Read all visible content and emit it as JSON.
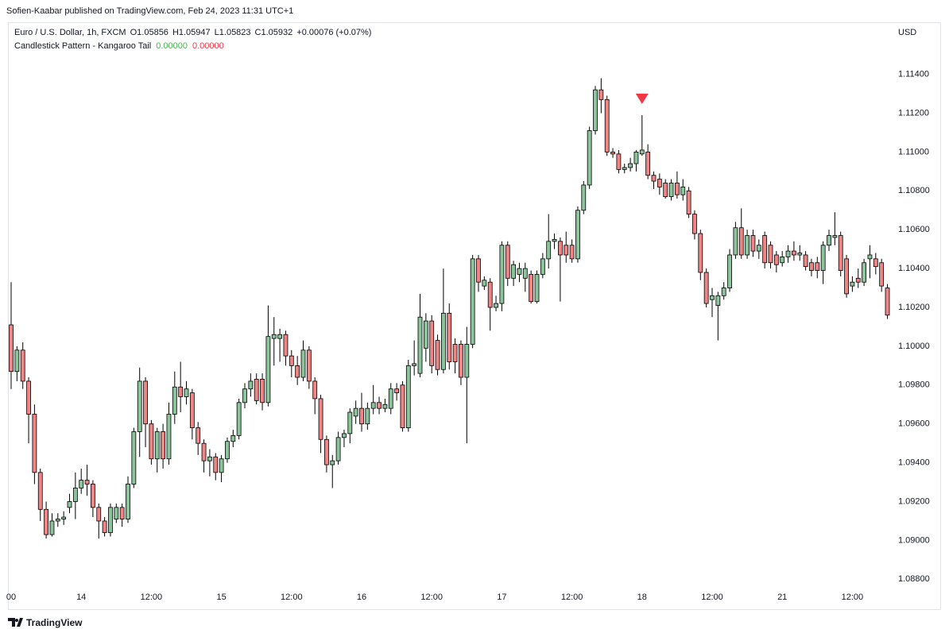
{
  "header": {
    "publisher": "Sofien-Kaabar published on TradingView.com, Feb 24, 2023 11:31 UTC+1"
  },
  "footer": {
    "brand": "TradingView"
  },
  "chart_data": {
    "type": "candlestick",
    "symbol": "Euro / U.S. Dollar, 1h, FXCM",
    "ohlc_legend": [
      "O1.05856",
      "H1.05947",
      "L1.05823",
      "C1.05932",
      "+0.00076 (+0.07%)"
    ],
    "indicator": {
      "name": "Candlestick Pattern - Kangaroo Tail",
      "values": [
        "0.00000",
        "0.00000"
      ],
      "colors": [
        "#4caf50",
        "#f23645"
      ]
    },
    "currency": "USD",
    "up_color": "#8cc59c",
    "down_color": "#ef8585",
    "signal_color": "#f23645",
    "bearish_signal_at": 108,
    "categories": [
      "00",
      null,
      null,
      null,
      null,
      null,
      null,
      null,
      null,
      null,
      null,
      null,
      "14",
      null,
      null,
      null,
      null,
      null,
      null,
      null,
      null,
      null,
      null,
      null,
      "12:00",
      null,
      null,
      null,
      null,
      null,
      null,
      null,
      null,
      null,
      null,
      null,
      "15",
      null,
      null,
      null,
      null,
      null,
      null,
      null,
      null,
      null,
      null,
      null,
      "12:00",
      null,
      null,
      null,
      null,
      null,
      null,
      null,
      null,
      null,
      null,
      null,
      "16",
      null,
      null,
      null,
      null,
      null,
      null,
      null,
      null,
      null,
      null,
      null,
      "12:00",
      null,
      null,
      null,
      null,
      null,
      null,
      null,
      null,
      null,
      null,
      null,
      "17",
      null,
      null,
      null,
      null,
      null,
      null,
      null,
      null,
      null,
      null,
      null,
      "12:00",
      null,
      null,
      null,
      null,
      null,
      null,
      null,
      null,
      null,
      null,
      null,
      "18",
      null,
      null,
      null,
      null,
      null,
      null,
      null,
      null,
      null,
      null,
      null,
      "12:00",
      null,
      null,
      null,
      null,
      null,
      null,
      null,
      null,
      null,
      null,
      null,
      "21",
      null,
      null,
      null,
      null,
      null,
      null,
      null,
      null,
      null,
      null,
      null,
      "12:00",
      null,
      null,
      null,
      null,
      null,
      null
    ],
    "open": [
      1.1011,
      1.0987,
      1.0998,
      1.0982,
      1.0965,
      1.0935,
      1.0916,
      1.0903,
      1.091,
      1.0911,
      1.0917,
      1.092,
      1.0927,
      1.0931,
      1.0929,
      1.0917,
      1.091,
      1.0904,
      1.0911,
      1.0917,
      1.0911,
      1.0929,
      1.0956,
      1.0982,
      1.096,
      1.0942,
      1.0956,
      1.0942,
      1.0965,
      1.0979,
      1.0974,
      1.0976,
      1.0958,
      1.095,
      1.0941,
      1.0943,
      1.0935,
      1.0942,
      1.0951,
      1.0954,
      1.0971,
      1.0978,
      1.0983,
      1.0983,
      1.0971,
      1.1004,
      1.1004,
      1.1006,
      1.0995,
      1.099,
      1.0984,
      1.0998,
      1.0982,
      1.0973,
      1.0952,
      1.0939,
      1.0941,
      1.0953,
      1.0955,
      1.0964,
      1.0968,
      1.096,
      1.0968,
      1.0971,
      1.0968,
      1.0968,
      1.0978,
      1.098,
      1.0958,
      1.099,
      1.0986,
      1.0999,
      1.1013,
      1.1003,
      1.0988,
      1.1017,
      1.1001,
      1.1001,
      1.0984,
      1.1001,
      1.1045,
      1.1031,
      1.1033,
      1.102,
      1.1022,
      1.1052,
      1.1035,
      1.1037,
      1.1035,
      1.1037,
      1.1023,
      1.1037,
      1.1045,
      1.1054,
      1.1054,
      1.1052,
      1.1052,
      1.1045,
      1.107,
      1.1083,
      1.1111,
      1.1132,
      1.1127,
      1.11,
      1.1099,
      1.1091,
      1.1092,
      1.1094,
      1.1099,
      1.11,
      1.1088,
      1.1086,
      1.1084,
      1.1077,
      1.1084,
      1.1078,
      1.108,
      1.1068,
      1.1058,
      1.1038,
      1.1024,
      1.1021,
      1.1026,
      1.103,
      1.1047,
      1.1061,
      1.1047,
      1.1057,
      1.1049,
      1.1057,
      1.1052,
      1.1047,
      1.1043,
      1.1046,
      1.1049,
      1.1047,
      1.1047,
      1.1043,
      1.1043,
      1.1039,
      1.1052,
      1.1056,
      1.1057,
      1.1045,
      1.1031,
      1.1035,
      1.1033,
      1.1045,
      1.1045,
      1.1043,
      1.103
    ],
    "high": [
      1.1033,
      1.1,
      1.1002,
      1.0984,
      1.097,
      1.0937,
      1.092,
      1.0914,
      1.0914,
      1.0915,
      1.0924,
      1.0935,
      1.0937,
      1.0939,
      1.0931,
      1.0919,
      1.0912,
      1.0919,
      1.0919,
      1.0919,
      1.0933,
      1.0958,
      1.0989,
      1.0984,
      1.0962,
      1.0958,
      1.096,
      1.0971,
      1.0987,
      1.0992,
      1.0982,
      1.0978,
      1.0961,
      1.0952,
      1.0947,
      1.0945,
      1.0944,
      1.0953,
      1.0957,
      1.0973,
      1.0981,
      1.0986,
      1.0986,
      1.0986,
      1.1021,
      1.1015,
      1.1009,
      1.1008,
      1.0998,
      1.0995,
      1.1003,
      1.1,
      1.0984,
      1.0975,
      1.0954,
      1.0944,
      1.0956,
      1.0957,
      1.0968,
      1.0972,
      1.0976,
      1.0971,
      1.098,
      1.0974,
      1.0973,
      1.0981,
      1.0981,
      1.0982,
      1.0993,
      1.1003,
      1.1027,
      1.1017,
      1.1016,
      1.1006,
      1.104,
      1.1022,
      1.1004,
      1.1003,
      1.101,
      1.1047,
      1.1047,
      1.1036,
      1.1035,
      1.1026,
      1.1054,
      1.1054,
      1.1044,
      1.1043,
      1.1043,
      1.1039,
      1.1039,
      1.1048,
      1.1068,
      1.1058,
      1.1056,
      1.1059,
      1.1055,
      1.1072,
      1.1085,
      1.1113,
      1.1134,
      1.1138,
      1.1129,
      1.1102,
      1.1101,
      1.1094,
      1.1097,
      1.1101,
      1.1119,
      1.1104,
      1.109,
      1.1089,
      1.1086,
      1.1086,
      1.109,
      1.1086,
      1.1082,
      1.107,
      1.106,
      1.104,
      1.103,
      1.1028,
      1.1033,
      1.105,
      1.1064,
      1.1071,
      1.106,
      1.106,
      1.1055,
      1.1059,
      1.1054,
      1.1049,
      1.1049,
      1.1052,
      1.1054,
      1.1052,
      1.1049,
      1.1045,
      1.1046,
      1.1054,
      1.106,
      1.1069,
      1.1059,
      1.1047,
      1.1036,
      1.104,
      1.1045,
      1.1052,
      1.1048,
      1.1045,
      1.1032
    ],
    "low": [
      1.0978,
      1.0982,
      1.0978,
      1.095,
      1.0929,
      1.091,
      1.0901,
      1.0902,
      1.0907,
      1.0908,
      1.0914,
      1.0911,
      1.0924,
      1.0923,
      1.0912,
      1.0901,
      1.0902,
      1.0902,
      1.0909,
      1.0907,
      1.0909,
      1.0927,
      1.0943,
      1.0948,
      1.0939,
      1.0935,
      1.0937,
      1.0939,
      1.096,
      1.0966,
      1.097,
      1.0952,
      1.0944,
      1.0935,
      1.0933,
      1.0931,
      1.093,
      1.094,
      1.0948,
      1.0952,
      1.0968,
      1.0974,
      1.097,
      1.0967,
      1.0969,
      1.099,
      1.0992,
      1.099,
      1.0984,
      1.098,
      1.0982,
      1.0978,
      1.0965,
      1.0945,
      1.0935,
      1.0927,
      1.0939,
      1.0948,
      1.095,
      1.096,
      1.0956,
      1.0957,
      1.0965,
      1.0965,
      1.0966,
      1.0965,
      1.0972,
      1.0956,
      1.0956,
      1.0985,
      1.0984,
      1.0992,
      1.0986,
      1.0985,
      1.0986,
      1.0988,
      1.0986,
      1.098,
      1.095,
      1.0999,
      1.1028,
      1.1029,
      1.1008,
      1.1018,
      1.1018,
      1.1031,
      1.1031,
      1.1033,
      1.1028,
      1.1022,
      1.1022,
      1.1035,
      1.104,
      1.105,
      1.1023,
      1.1043,
      1.1043,
      1.1043,
      1.1068,
      1.1081,
      1.1109,
      1.112,
      1.1098,
      1.1097,
      1.1089,
      1.1089,
      1.109,
      1.109,
      1.1098,
      1.1086,
      1.1081,
      1.1078,
      1.1076,
      1.1075,
      1.1076,
      1.1075,
      1.1066,
      1.1055,
      1.1034,
      1.102,
      1.1015,
      1.1003,
      1.1024,
      1.1028,
      1.1045,
      1.1045,
      1.1045,
      1.1046,
      1.1045,
      1.104,
      1.104,
      1.1038,
      1.1041,
      1.1043,
      1.1044,
      1.1044,
      1.1039,
      1.1036,
      1.1035,
      1.1032,
      1.1049,
      1.1052,
      1.1036,
      1.1025,
      1.1028,
      1.103,
      1.1031,
      1.1035,
      1.1037,
      1.1028,
      1.1014
    ],
    "close": [
      1.0987,
      1.0998,
      1.0982,
      1.0965,
      1.0935,
      1.0916,
      1.0903,
      1.091,
      1.0911,
      1.0912,
      1.092,
      1.0927,
      1.0931,
      1.0929,
      1.0917,
      1.091,
      1.0904,
      1.0917,
      1.0917,
      1.0911,
      1.0929,
      1.0956,
      1.0982,
      1.096,
      1.0942,
      1.0956,
      1.0942,
      1.0965,
      1.0979,
      1.0974,
      1.0978,
      1.0958,
      1.095,
      1.0941,
      1.0943,
      1.0935,
      1.0942,
      1.0951,
      1.0954,
      1.0971,
      1.0978,
      1.0982,
      1.0972,
      1.0971,
      1.1005,
      1.1006,
      1.1006,
      1.0995,
      1.099,
      1.0984,
      1.0998,
      1.0982,
      1.0973,
      1.0952,
      1.0939,
      1.0941,
      1.0953,
      1.0955,
      1.0966,
      1.0968,
      1.096,
      1.0968,
      1.0971,
      1.0968,
      1.097,
      1.0978,
      1.0976,
      1.0958,
      1.099,
      1.0991,
      1.1015,
      1.1013,
      1.099,
      1.0988,
      1.1017,
      1.0992,
      1.0992,
      1.0984,
      1.1001,
      1.1045,
      1.1033,
      1.1034,
      1.102,
      1.1022,
      1.1052,
      1.1035,
      1.1042,
      1.104,
      1.104,
      1.1023,
      1.1037,
      1.1045,
      1.1054,
      1.1055,
      1.1047,
      1.1047,
      1.1045,
      1.107,
      1.1083,
      1.1111,
      1.1132,
      1.1127,
      1.11,
      1.1099,
      1.1091,
      1.1092,
      1.1094,
      1.11,
      1.1101,
      1.1088,
      1.1085,
      1.1082,
      1.1077,
      1.1084,
      1.1078,
      1.1082,
      1.1068,
      1.1058,
      1.1038,
      1.1022,
      1.1026,
      1.1026,
      1.103,
      1.1047,
      1.1061,
      1.1047,
      1.1057,
      1.1049,
      1.1052,
      1.1043,
      1.1043,
      1.1042,
      1.1046,
      1.1049,
      1.1047,
      1.1048,
      1.1041,
      1.1039,
      1.1039,
      1.1052,
      1.1057,
      1.1057,
      1.1039,
      1.1027,
      1.1033,
      1.1033,
      1.1043,
      1.1047,
      1.1041,
      1.1031,
      1.1016
    ],
    "ylim": [
      1.0865,
      1.1166
    ],
    "yticks": [
      {
        "value": 1.088,
        "label": "1.08800"
      },
      {
        "value": 1.09,
        "label": "1.09000"
      },
      {
        "value": 1.092,
        "label": "1.09200"
      },
      {
        "value": 1.094,
        "label": "1.09400"
      },
      {
        "value": 1.096,
        "label": "1.09600"
      },
      {
        "value": 1.098,
        "label": "1.09800"
      },
      {
        "value": 1.1,
        "label": "1.10000"
      },
      {
        "value": 1.102,
        "label": "1.10200"
      },
      {
        "value": 1.104,
        "label": "1.10400"
      },
      {
        "value": 1.106,
        "label": "1.10600"
      },
      {
        "value": 1.108,
        "label": "1.10800"
      },
      {
        "value": 1.11,
        "label": "1.11000"
      },
      {
        "value": 1.112,
        "label": "1.11200"
      },
      {
        "value": 1.114,
        "label": "1.11400"
      }
    ],
    "grid": false
  }
}
